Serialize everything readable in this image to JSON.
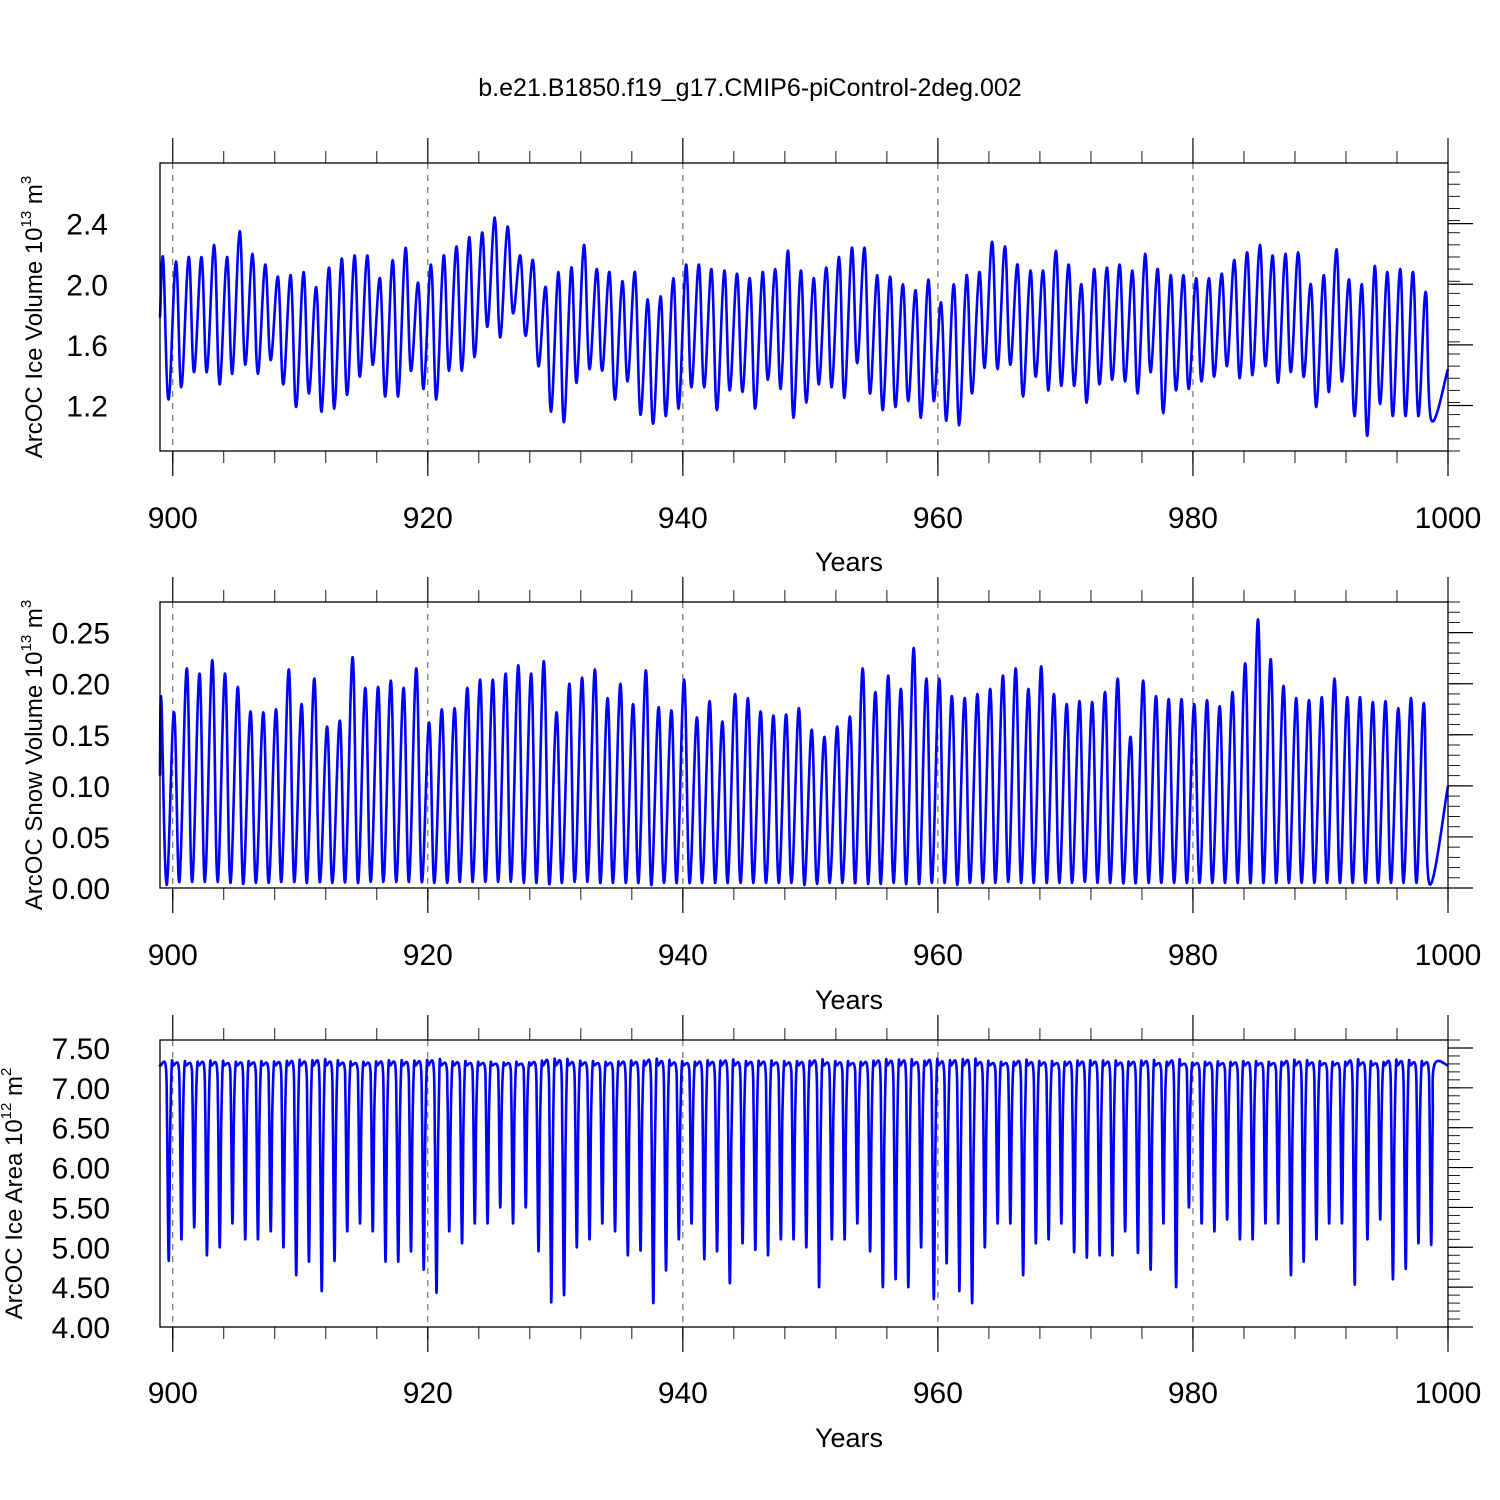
{
  "title": "b.e21.B1850.f19_g17.CMIP6-piControl-2deg.002",
  "colors": {
    "series": "#0000ff",
    "axis": "#000000",
    "reference_line": "#555555"
  },
  "chart_data": [
    {
      "type": "line",
      "id": "ice-volume",
      "ylabel": {
        "main": "ArcOC Ice Volume 10",
        "exp": "13",
        "unit": " m",
        "unit_exp": "3"
      },
      "xlabel": "Years",
      "xlim": [
        899,
        1000
      ],
      "ylim": [
        0.9,
        2.8
      ],
      "xticks": [
        900,
        920,
        940,
        960,
        980,
        1000
      ],
      "xtick_labels": [
        "900",
        "920",
        "940",
        "960",
        "980",
        "1000"
      ],
      "yticks": [
        1.2,
        1.6,
        2.0,
        2.4
      ],
      "ytick_labels": [
        "1.2",
        "1.6",
        "2.0",
        "2.4"
      ],
      "reference_lines_x": [
        900,
        920,
        940,
        960,
        980
      ],
      "grid": false,
      "series": [
        {
          "annual_max": [
            2.17,
            2.15,
            2.18,
            2.18,
            2.26,
            2.18,
            2.35,
            2.2,
            2.13,
            2.05,
            2.06,
            2.08,
            1.98,
            2.11,
            2.17,
            2.19,
            2.19,
            2.04,
            2.16,
            2.24,
            2.01,
            2.13,
            2.19,
            2.25,
            2.31,
            2.34,
            2.44,
            2.38,
            2.19,
            2.16,
            1.98,
            2.08,
            2.11,
            2.26,
            2.1,
            2.08,
            2.02,
            2.08,
            1.9,
            1.92,
            2.04,
            2.13,
            2.13,
            2.1,
            2.09,
            2.07,
            2.04,
            2.08,
            2.1,
            2.22,
            2.09,
            2.04,
            2.11,
            2.18,
            2.24,
            2.24,
            2.06,
            2.05,
            2.0,
            1.96,
            2.03,
            1.88,
            2.0,
            2.06,
            2.08,
            2.28,
            2.25,
            2.13,
            2.09,
            2.09,
            2.22,
            2.13,
            2.0,
            2.1,
            2.11,
            2.13,
            2.09,
            2.2,
            2.1,
            2.06,
            2.06,
            2.04,
            2.04,
            2.07,
            2.16,
            2.21,
            2.26,
            2.19,
            2.2,
            2.21,
            2.0,
            2.06,
            2.23,
            2.03,
            2.0,
            2.12,
            2.08,
            2.1,
            2.08,
            1.95
          ],
          "annual_min": [
            1.24,
            1.32,
            1.42,
            1.42,
            1.34,
            1.41,
            1.47,
            1.41,
            1.5,
            1.34,
            1.19,
            1.28,
            1.16,
            1.18,
            1.27,
            1.39,
            1.47,
            1.26,
            1.26,
            1.43,
            1.31,
            1.24,
            1.43,
            1.43,
            1.52,
            1.72,
            1.65,
            1.81,
            1.66,
            1.46,
            1.16,
            1.09,
            1.35,
            1.44,
            1.43,
            1.24,
            1.36,
            1.14,
            1.08,
            1.13,
            1.18,
            1.32,
            1.32,
            1.17,
            1.3,
            1.29,
            1.18,
            1.37,
            1.31,
            1.12,
            1.22,
            1.34,
            1.32,
            1.25,
            1.48,
            1.28,
            1.17,
            1.19,
            1.23,
            1.12,
            1.23,
            1.1,
            1.07,
            1.28,
            1.45,
            1.44,
            1.47,
            1.26,
            1.39,
            1.3,
            1.33,
            1.33,
            1.22,
            1.34,
            1.37,
            1.36,
            1.28,
            1.42,
            1.15,
            1.3,
            1.31,
            1.36,
            1.39,
            1.46,
            1.38,
            1.4,
            1.46,
            1.35,
            1.42,
            1.39,
            1.19,
            1.29,
            1.36,
            1.13,
            1.0,
            1.21,
            1.13,
            1.13,
            1.13,
            1.11
          ],
          "start_value": 1.78,
          "end_value": 1.44
        }
      ]
    },
    {
      "type": "line",
      "id": "snow-volume",
      "ylabel": {
        "main": "ArcOC Snow Volume 10",
        "exp": "13",
        "unit": " m",
        "unit_exp": "3"
      },
      "xlabel": "Years",
      "xlim": [
        899,
        1000
      ],
      "ylim": [
        0.0,
        0.28
      ],
      "xticks": [
        900,
        920,
        940,
        960,
        980,
        1000
      ],
      "xtick_labels": [
        "900",
        "920",
        "940",
        "960",
        "980",
        "1000"
      ],
      "yticks": [
        0.0,
        0.05,
        0.1,
        0.15,
        0.2,
        0.25
      ],
      "ytick_labels": [
        "0.00",
        "0.05",
        "0.10",
        "0.15",
        "0.20",
        "0.25"
      ],
      "reference_lines_x": [
        900,
        920,
        940,
        960,
        980
      ],
      "grid": false,
      "series": [
        {
          "annual_max": [
            0.185,
            0.172,
            0.215,
            0.21,
            0.223,
            0.21,
            0.197,
            0.173,
            0.172,
            0.175,
            0.214,
            0.18,
            0.205,
            0.158,
            0.164,
            0.226,
            0.196,
            0.197,
            0.203,
            0.196,
            0.215,
            0.162,
            0.175,
            0.176,
            0.196,
            0.204,
            0.204,
            0.21,
            0.218,
            0.21,
            0.222,
            0.172,
            0.2,
            0.206,
            0.214,
            0.186,
            0.2,
            0.18,
            0.213,
            0.177,
            0.174,
            0.204,
            0.167,
            0.183,
            0.163,
            0.19,
            0.186,
            0.173,
            0.169,
            0.17,
            0.176,
            0.155,
            0.148,
            0.158,
            0.168,
            0.215,
            0.192,
            0.208,
            0.195,
            0.235,
            0.205,
            0.205,
            0.188,
            0.186,
            0.19,
            0.195,
            0.208,
            0.215,
            0.195,
            0.217,
            0.19,
            0.18,
            0.183,
            0.182,
            0.192,
            0.205,
            0.148,
            0.203,
            0.188,
            0.185,
            0.185,
            0.18,
            0.184,
            0.178,
            0.192,
            0.22,
            0.263,
            0.224,
            0.198,
            0.186,
            0.184,
            0.187,
            0.205,
            0.187,
            0.187,
            0.182,
            0.183,
            0.176,
            0.186,
            0.181
          ],
          "annual_min": [
            0.003,
            0.006,
            0.006,
            0.006,
            0.006,
            0.005,
            0.004,
            0.005,
            0.005,
            0.006,
            0.006,
            0.005,
            0.006,
            0.005,
            0.006,
            0.005,
            0.006,
            0.006,
            0.006,
            0.006,
            0.006,
            0.005,
            0.005,
            0.006,
            0.006,
            0.006,
            0.006,
            0.006,
            0.005,
            0.005,
            0.004,
            0.005,
            0.006,
            0.006,
            0.005,
            0.005,
            0.005,
            0.005,
            0.003,
            0.005,
            0.005,
            0.005,
            0.005,
            0.005,
            0.005,
            0.005,
            0.005,
            0.005,
            0.005,
            0.005,
            0.003,
            0.004,
            0.005,
            0.005,
            0.005,
            0.004,
            0.004,
            0.005,
            0.004,
            0.004,
            0.005,
            0.005,
            0.003,
            0.005,
            0.005,
            0.005,
            0.006,
            0.005,
            0.005,
            0.005,
            0.005,
            0.005,
            0.006,
            0.005,
            0.005,
            0.005,
            0.005,
            0.005,
            0.005,
            0.005,
            0.005,
            0.005,
            0.005,
            0.005,
            0.005,
            0.005,
            0.005,
            0.005,
            0.005,
            0.005,
            0.005,
            0.005,
            0.005,
            0.005,
            0.005,
            0.005,
            0.005,
            0.005,
            0.005,
            0.005
          ],
          "start_value": 0.11,
          "end_value": 0.1
        }
      ]
    },
    {
      "type": "line",
      "id": "ice-area",
      "ylabel": {
        "main": "ArcOC Ice Area 10",
        "exp": "12",
        "unit": " m",
        "unit_exp": "2"
      },
      "xlabel": "Years",
      "xlim": [
        899,
        1000
      ],
      "ylim": [
        4.0,
        7.6
      ],
      "xticks": [
        900,
        920,
        940,
        960,
        980,
        1000
      ],
      "xtick_labels": [
        "900",
        "920",
        "940",
        "960",
        "980",
        "1000"
      ],
      "yticks": [
        4.0,
        4.5,
        5.0,
        5.5,
        6.0,
        6.5,
        7.0,
        7.5
      ],
      "ytick_labels": [
        "4.00",
        "4.50",
        "5.00",
        "5.50",
        "6.00",
        "6.50",
        "7.00",
        "7.50"
      ],
      "reference_lines_x": [
        900,
        920,
        940,
        960,
        980
      ],
      "grid": false,
      "series": [
        {
          "annual_max": 7.28,
          "annual_min": [
            4.83,
            5.1,
            5.25,
            4.9,
            5.0,
            5.3,
            5.1,
            5.1,
            5.2,
            5.0,
            4.65,
            4.82,
            4.45,
            4.83,
            5.2,
            5.3,
            5.2,
            4.82,
            4.82,
            4.95,
            4.72,
            4.43,
            5.2,
            5.05,
            5.3,
            5.3,
            5.5,
            5.3,
            5.5,
            4.95,
            4.31,
            4.4,
            5.0,
            5.1,
            5.3,
            5.2,
            4.9,
            4.96,
            4.3,
            4.71,
            5.1,
            5.3,
            4.85,
            4.95,
            4.55,
            5.05,
            4.97,
            4.9,
            5.1,
            5.1,
            5.0,
            4.5,
            5.1,
            5.1,
            5.3,
            4.95,
            4.5,
            4.6,
            4.5,
            5.0,
            4.35,
            4.8,
            4.45,
            4.3,
            5.0,
            5.3,
            5.3,
            4.65,
            5.05,
            5.1,
            5.3,
            4.94,
            4.87,
            4.9,
            4.9,
            5.2,
            4.93,
            4.72,
            5.3,
            4.5,
            5.5,
            5.3,
            5.2,
            5.35,
            5.1,
            5.1,
            5.3,
            5.3,
            4.65,
            4.82,
            5.1,
            5.3,
            5.3,
            4.53,
            5.1,
            5.35,
            4.6,
            4.73,
            5.05,
            5.03
          ],
          "start_value": 7.28,
          "end_value": 7.28
        }
      ]
    }
  ]
}
